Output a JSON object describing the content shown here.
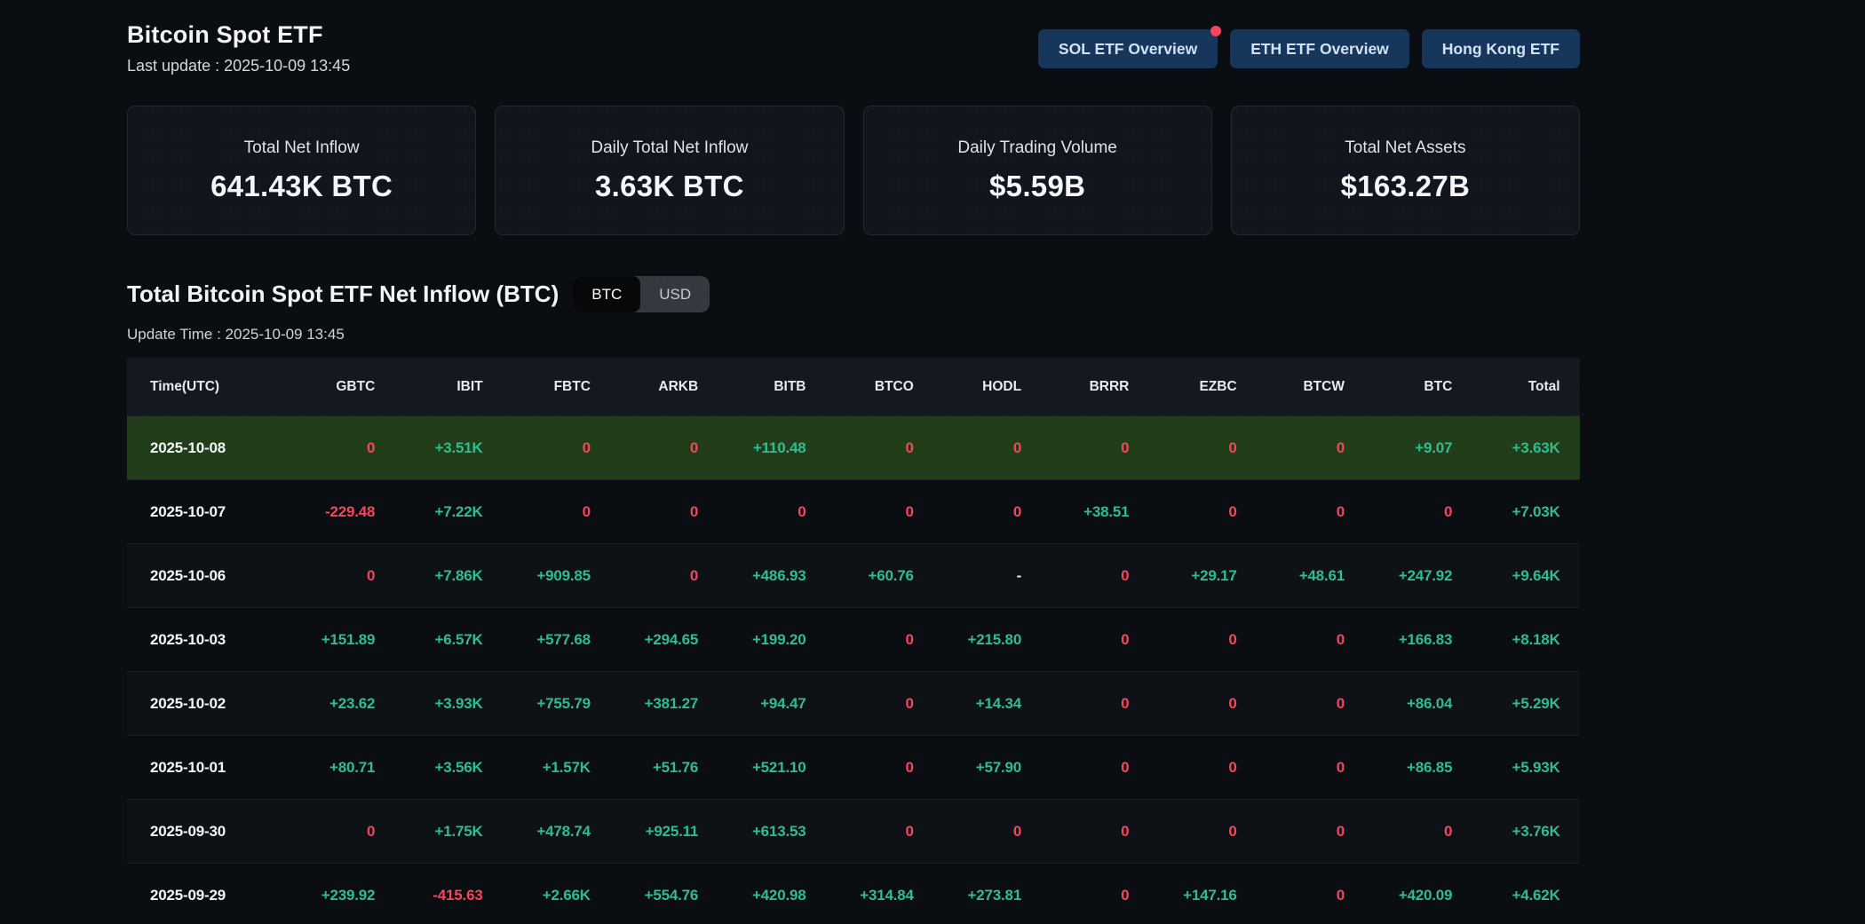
{
  "page": {
    "title": "Bitcoin Spot ETF",
    "last_update": "Last update : 2025-10-09 13:45"
  },
  "nav_buttons": [
    {
      "label": "SOL ETF Overview",
      "has_notification_dot": true
    },
    {
      "label": "ETH ETF Overview",
      "has_notification_dot": false
    },
    {
      "label": "Hong Kong ETF",
      "has_notification_dot": false
    }
  ],
  "stat_cards": [
    {
      "label": "Total Net Inflow",
      "value": "641.43K BTC"
    },
    {
      "label": "Daily Total Net Inflow",
      "value": "3.63K BTC"
    },
    {
      "label": "Daily Trading Volume",
      "value": "$5.59B"
    },
    {
      "label": "Total Net Assets",
      "value": "$163.27B"
    }
  ],
  "section": {
    "title": "Total Bitcoin Spot ETF Net Inflow (BTC)",
    "update_time": "Update Time : 2025-10-09 13:45",
    "toggle": {
      "options": [
        "BTC",
        "USD"
      ],
      "selected": "BTC"
    }
  },
  "table": {
    "columns": [
      "Time(UTC)",
      "GBTC",
      "IBIT",
      "FBTC",
      "ARKB",
      "BITB",
      "BTCO",
      "HODL",
      "BRRR",
      "EZBC",
      "BTCW",
      "BTC",
      "Total"
    ],
    "rows": [
      {
        "date": "2025-10-08",
        "highlighted": true,
        "values": [
          "0",
          "+3.51K",
          "0",
          "0",
          "+110.48",
          "0",
          "0",
          "0",
          "0",
          "0",
          "+9.07",
          "+3.63K"
        ]
      },
      {
        "date": "2025-10-07",
        "highlighted": false,
        "values": [
          "-229.48",
          "+7.22K",
          "0",
          "0",
          "0",
          "0",
          "0",
          "+38.51",
          "0",
          "0",
          "0",
          "+7.03K"
        ]
      },
      {
        "date": "2025-10-06",
        "highlighted": false,
        "values": [
          "0",
          "+7.86K",
          "+909.85",
          "0",
          "+486.93",
          "+60.76",
          "-",
          "0",
          "+29.17",
          "+48.61",
          "+247.92",
          "+9.64K"
        ]
      },
      {
        "date": "2025-10-03",
        "highlighted": false,
        "values": [
          "+151.89",
          "+6.57K",
          "+577.68",
          "+294.65",
          "+199.20",
          "0",
          "+215.80",
          "0",
          "0",
          "0",
          "+166.83",
          "+8.18K"
        ]
      },
      {
        "date": "2025-10-02",
        "highlighted": false,
        "values": [
          "+23.62",
          "+3.93K",
          "+755.79",
          "+381.27",
          "+94.47",
          "0",
          "+14.34",
          "0",
          "0",
          "0",
          "+86.04",
          "+5.29K"
        ]
      },
      {
        "date": "2025-10-01",
        "highlighted": false,
        "values": [
          "+80.71",
          "+3.56K",
          "+1.57K",
          "+51.76",
          "+521.10",
          "0",
          "+57.90",
          "0",
          "0",
          "0",
          "+86.85",
          "+5.93K"
        ]
      },
      {
        "date": "2025-09-30",
        "highlighted": false,
        "values": [
          "0",
          "+1.75K",
          "+478.74",
          "+925.11",
          "+613.53",
          "0",
          "0",
          "0",
          "0",
          "0",
          "0",
          "+3.76K"
        ]
      },
      {
        "date": "2025-09-29",
        "highlighted": false,
        "values": [
          "+239.92",
          "-415.63",
          "+2.66K",
          "+554.76",
          "+420.98",
          "+314.84",
          "+273.81",
          "0",
          "+147.16",
          "0",
          "+420.09",
          "+4.62K"
        ]
      }
    ]
  },
  "colors": {
    "positive": "#2ebd90",
    "negative": "#f5465c",
    "neutral": "#e8ebef",
    "highlight_row_bg": "#213d19",
    "nav_button_bg": "#16375b",
    "notification_dot": "#f5465c",
    "page_bg": "#0a0d12"
  }
}
